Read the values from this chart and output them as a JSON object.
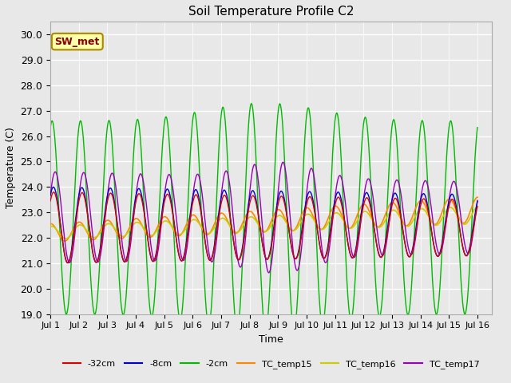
{
  "title": "Soil Temperature Profile C2",
  "xlabel": "Time",
  "ylabel": "Temperature (C)",
  "ylim": [
    19.0,
    30.5
  ],
  "yticks": [
    19.0,
    20.0,
    21.0,
    22.0,
    23.0,
    24.0,
    25.0,
    26.0,
    27.0,
    28.0,
    29.0,
    30.0
  ],
  "xlim_days": 15.5,
  "xtick_labels": [
    "Jul 1",
    "Jul 2",
    "Jul 3",
    "Jul 4",
    "Jul 5",
    "Jul 6",
    "Jul 7",
    "Jul 8",
    "Jul 9",
    "Jul 10",
    "Jul 11",
    "Jul 12",
    "Jul 13",
    "Jul 14",
    "Jul 15",
    "Jul 16"
  ],
  "colors": {
    "neg32cm": "#dd0000",
    "neg8cm": "#0000cc",
    "neg2cm": "#00bb00",
    "TC_temp15": "#ff8800",
    "TC_temp16": "#cccc00",
    "TC_temp17": "#9900bb"
  },
  "fig_bg": "#e8e8e8",
  "plot_bg": "#e8e8e8",
  "annotation_text": "SW_met",
  "annotation_bg": "#ffffaa",
  "annotation_border": "#aa8800"
}
